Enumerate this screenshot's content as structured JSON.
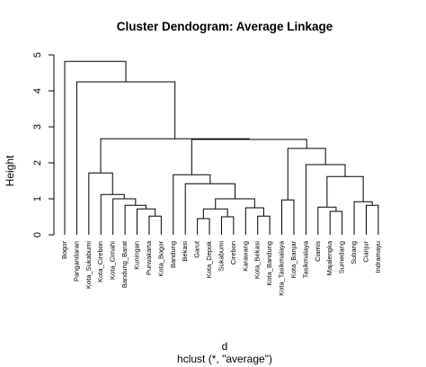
{
  "chart_data": {
    "type": "dendrogram",
    "title": "Cluster Dendogram: Average Linkage",
    "xlabel": "d",
    "xsublabel": "hclust (*, \"average\")",
    "ylabel": "Height",
    "ylim": [
      0,
      5
    ],
    "yticks": [
      "0",
      "1",
      "2",
      "3",
      "4",
      "5"
    ],
    "leaves": [
      "Bogor",
      "Pangandaran",
      "Kota_Sukabumi",
      "Kota_Cirebon",
      "Kota_Cimahi",
      "Bandung_Barat",
      "Kuningan",
      "Purwakarta",
      "Kota_Bogor",
      "Bandung",
      "Bekasi",
      "Garut",
      "Kota_Depok",
      "Sukabumi",
      "Cirebon",
      "Karawang",
      "Kota_Bekasi",
      "Kota_Bandung",
      "Kota_Tasikmalaya",
      "Kota_Banjar",
      "Tasikmalaya",
      "Ciamis",
      "Majalengka",
      "Sumedang",
      "Subang",
      "Cianjur",
      "Indramayu"
    ],
    "merges": [
      {
        "left": "Purwakarta",
        "right": "Kota_Bogor",
        "height": 0.52
      },
      {
        "left": "Kuningan",
        "right": "c1",
        "height": 0.72
      },
      {
        "left": "Bandung_Barat",
        "right": "c2",
        "height": 0.82
      },
      {
        "left": "Kota_Cimahi",
        "right": "c3",
        "height": 1.0
      },
      {
        "left": "Kota_Cirebon",
        "right": "c4",
        "height": 1.12
      },
      {
        "left": "Kota_Sukabumi",
        "right": "c5",
        "height": 1.72
      },
      {
        "left": "Garut",
        "right": "Kota_Depok",
        "height": 0.45
      },
      {
        "left": "Sukabumi",
        "right": "Cirebon",
        "height": 0.5
      },
      {
        "left": "c7",
        "right": "c8",
        "height": 0.72
      },
      {
        "left": "Kota_Bekasi",
        "right": "Kota_Bandung",
        "height": 0.52
      },
      {
        "left": "Karawang",
        "right": "c10",
        "height": 0.75
      },
      {
        "left": "c9",
        "right": "c11",
        "height": 1.0
      },
      {
        "left": "Bekasi",
        "right": "c12",
        "height": 1.42
      },
      {
        "left": "Bandung",
        "right": "c13",
        "height": 1.67
      },
      {
        "left": "Kota_Tasikmalaya",
        "right": "Kota_Banjar",
        "height": 0.97
      },
      {
        "left": "Majalengka",
        "right": "Sumedang",
        "height": 0.65
      },
      {
        "left": "Ciamis",
        "right": "c16",
        "height": 0.77
      },
      {
        "left": "Cianjur",
        "right": "Indramayu",
        "height": 0.82
      },
      {
        "left": "Subang",
        "right": "c18",
        "height": 0.92
      },
      {
        "left": "c17",
        "right": "c19",
        "height": 1.62
      },
      {
        "left": "Tasikmalaya",
        "right": "c20",
        "height": 1.95
      },
      {
        "left": "c15",
        "right": "c21",
        "height": 2.4
      },
      {
        "left": "c14",
        "right": "c22",
        "height": 2.65
      },
      {
        "left": "c6",
        "right": "c23",
        "height": 2.67
      },
      {
        "left": "Pangandaran",
        "right": "c24",
        "height": 4.25
      },
      {
        "left": "Bogor",
        "right": "c25",
        "height": 4.82
      }
    ]
  }
}
